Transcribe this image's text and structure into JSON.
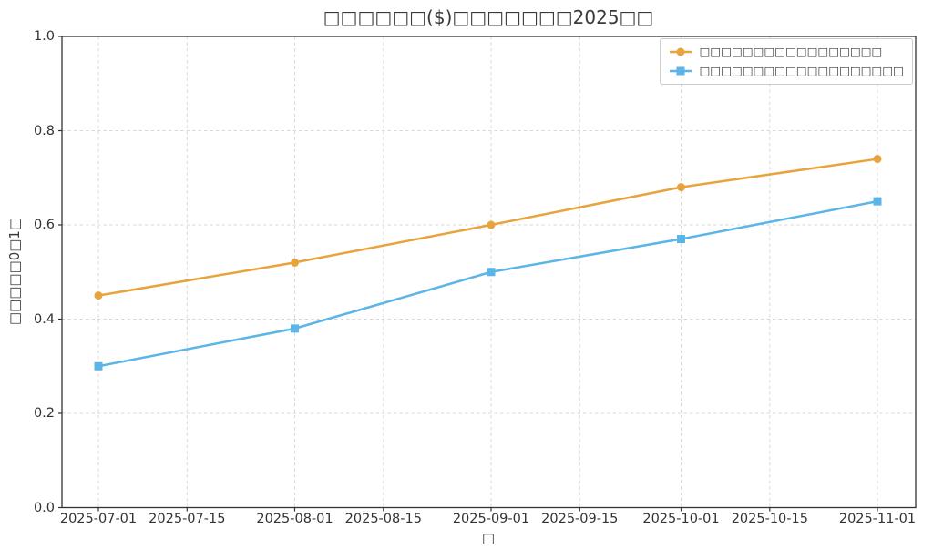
{
  "chart_data": {
    "type": "line",
    "title": "□□□□□□($)□□□□□□□2025□□",
    "xlabel": "□",
    "ylabel": "□□□□□0□1□",
    "grid": true,
    "grid_style": "dashed",
    "legend_position": "upper right",
    "ylim": [
      0.0,
      1.0
    ],
    "x": [
      "2025-07-01",
      "2025-08-01",
      "2025-09-01",
      "2025-10-01",
      "2025-11-01"
    ],
    "x_days": [
      0,
      31,
      62,
      92,
      123
    ],
    "x_ticks": [
      {
        "label": "2025-07-01",
        "day": 0
      },
      {
        "label": "2025-07-15",
        "day": 14
      },
      {
        "label": "2025-08-01",
        "day": 31
      },
      {
        "label": "2025-08-15",
        "day": 45
      },
      {
        "label": "2025-09-01",
        "day": 62
      },
      {
        "label": "2025-09-15",
        "day": 76
      },
      {
        "label": "2025-10-01",
        "day": 92
      },
      {
        "label": "2025-10-15",
        "day": 106
      },
      {
        "label": "2025-11-01",
        "day": 123
      }
    ],
    "y_ticks": [
      {
        "label": "0.0",
        "value": 0.0
      },
      {
        "label": "0.2",
        "value": 0.2
      },
      {
        "label": "0.4",
        "value": 0.4
      },
      {
        "label": "0.6",
        "value": 0.6
      },
      {
        "label": "0.8",
        "value": 0.8
      },
      {
        "label": "1.0",
        "value": 1.0
      }
    ],
    "series": [
      {
        "name": "□□□□□□□□□□□□□□□□□",
        "color": "#E8A33C",
        "marker": "circle",
        "values": [
          0.45,
          0.52,
          0.6,
          0.68,
          0.74
        ]
      },
      {
        "name": "□□□□□□□□□□□□□□□□□□□",
        "color": "#5BB5E7",
        "marker": "square",
        "values": [
          0.3,
          0.38,
          0.5,
          0.57,
          0.65
        ]
      }
    ]
  }
}
